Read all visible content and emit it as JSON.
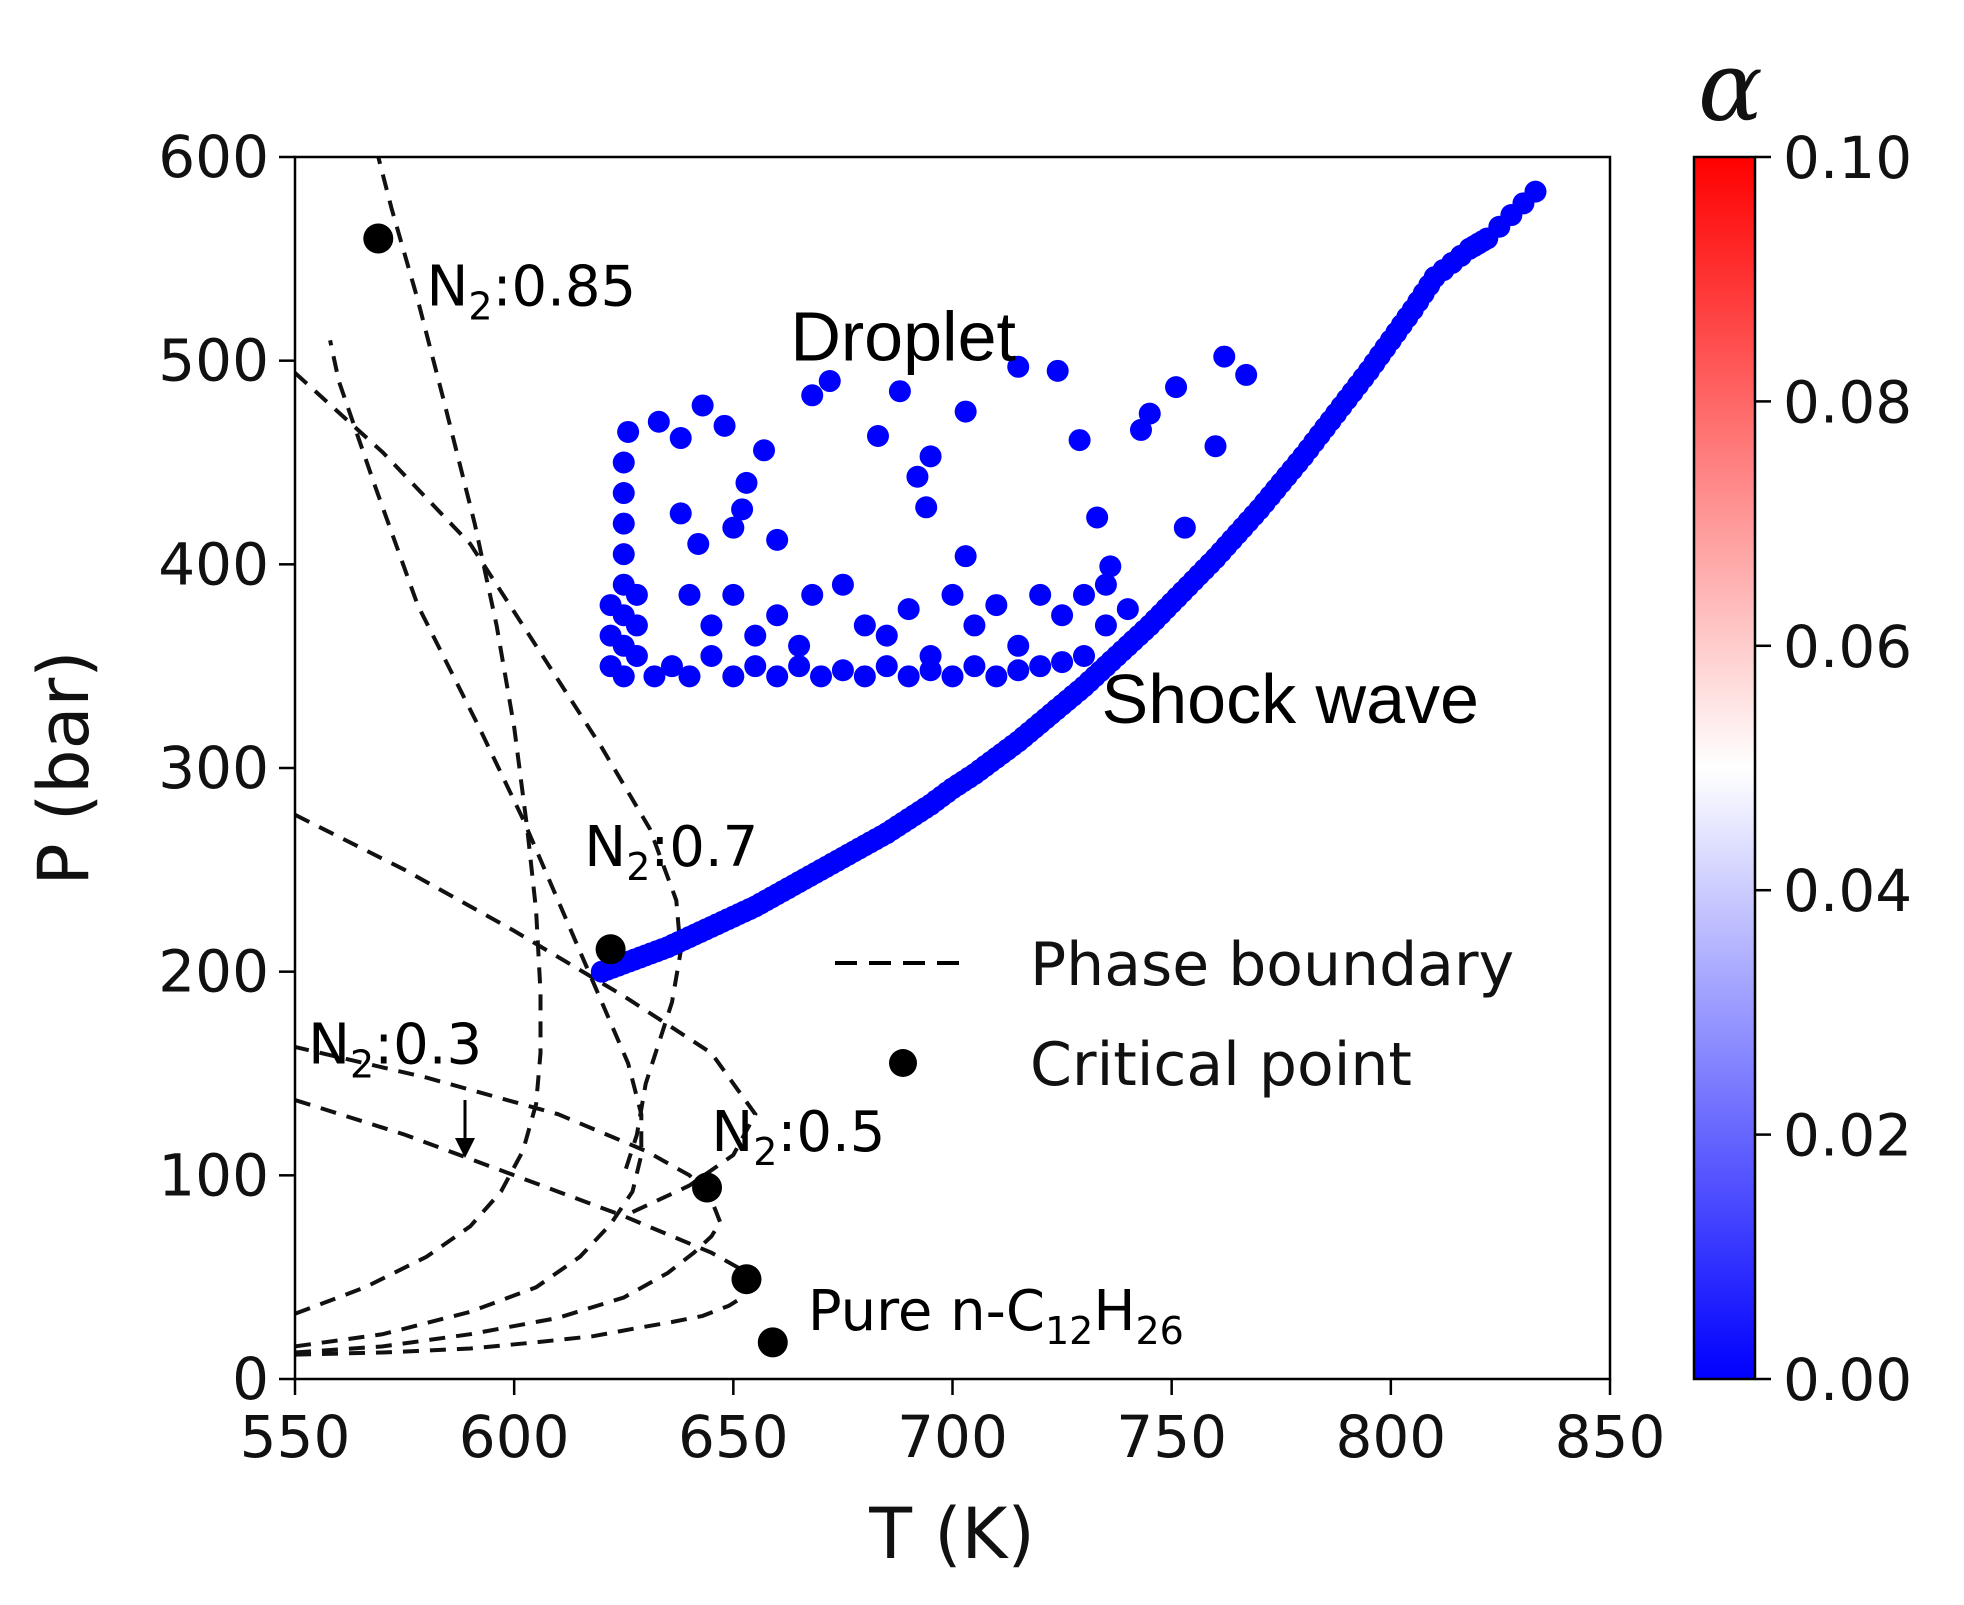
{
  "chart_data": {
    "type": "scatter",
    "xlabel": "T (K)",
    "ylabel": "P (bar)",
    "xlim": [
      550,
      850
    ],
    "ylim": [
      0,
      600
    ],
    "x_ticks": [
      "550",
      "600",
      "650",
      "700",
      "750",
      "800",
      "850"
    ],
    "y_ticks": [
      "0",
      "100",
      "200",
      "300",
      "400",
      "500",
      "600"
    ],
    "grid": false,
    "legend": {
      "placement": "center-right",
      "entries": [
        {
          "label": "Phase boundary",
          "marker": "dashed-line"
        },
        {
          "label": "Critical point",
          "marker": "black-dot"
        }
      ]
    },
    "colorbar": {
      "label": "α",
      "min": 0.0,
      "max": 0.1,
      "ticks": [
        "0.00",
        "0.02",
        "0.04",
        "0.06",
        "0.08",
        "0.10"
      ],
      "colormap": "bwr"
    },
    "phase_boundaries": [
      {
        "points": [
          [
            550,
            12
          ],
          [
            570,
            13
          ],
          [
            590,
            15
          ],
          [
            605,
            18
          ],
          [
            618,
            21
          ],
          [
            628,
            25
          ],
          [
            636,
            28
          ],
          [
            643,
            31
          ],
          [
            649,
            36
          ],
          [
            652,
            40
          ]
        ]
      },
      {
        "points": [
          [
            550,
            13
          ],
          [
            570,
            16
          ],
          [
            590,
            22
          ],
          [
            610,
            30
          ],
          [
            625,
            40
          ],
          [
            635,
            52
          ],
          [
            641,
            62
          ],
          [
            645,
            70
          ],
          [
            647,
            77
          ],
          [
            645,
            88
          ],
          [
            640,
            100
          ],
          [
            630,
            112
          ],
          [
            610,
            130
          ],
          [
            580,
            148
          ],
          [
            550,
            163
          ]
        ]
      },
      {
        "points": [
          [
            550,
            16
          ],
          [
            570,
            22
          ],
          [
            590,
            33
          ],
          [
            605,
            45
          ],
          [
            615,
            60
          ],
          [
            622,
            76
          ],
          [
            627,
            92
          ],
          [
            629,
            110
          ],
          [
            629,
            130
          ],
          [
            626,
            155
          ],
          [
            620,
            185
          ],
          [
            611,
            230
          ],
          [
            602,
            275
          ],
          [
            592,
            320
          ],
          [
            578,
            380
          ],
          [
            568,
            440
          ],
          [
            560,
            490
          ],
          [
            558,
            510
          ]
        ]
      },
      {
        "points": [
          [
            550,
            32
          ],
          [
            566,
            45
          ],
          [
            580,
            60
          ],
          [
            590,
            75
          ],
          [
            597,
            92
          ],
          [
            602,
            112
          ],
          [
            605,
            135
          ],
          [
            606,
            160
          ],
          [
            606,
            190
          ],
          [
            605,
            230
          ],
          [
            603,
            270
          ],
          [
            600,
            320
          ],
          [
            596,
            370
          ],
          [
            591,
            420
          ],
          [
            584,
            480
          ],
          [
            578,
            530
          ],
          [
            572,
            575
          ],
          [
            569,
            600
          ]
        ]
      },
      {
        "points": [
          [
            550,
            494
          ],
          [
            570,
            455
          ],
          [
            590,
            410
          ],
          [
            605,
            360
          ],
          [
            620,
            310
          ],
          [
            631,
            270
          ],
          [
            637,
            235
          ],
          [
            638,
            210
          ],
          [
            636,
            185
          ],
          [
            630,
            145
          ],
          [
            628,
            120
          ],
          [
            625,
            100
          ]
        ]
      },
      {
        "points": [
          [
            550,
            277
          ],
          [
            575,
            250
          ],
          [
            600,
            220
          ],
          [
            625,
            188
          ],
          [
            645,
            160
          ],
          [
            655,
            130
          ],
          [
            650,
            110
          ],
          [
            640,
            95
          ],
          [
            625,
            80
          ]
        ]
      },
      {
        "points": [
          [
            550,
            137
          ],
          [
            575,
            120
          ],
          [
            600,
            100
          ],
          [
            625,
            80
          ],
          [
            645,
            62
          ],
          [
            655,
            50
          ]
        ]
      }
    ],
    "critical_points": [
      {
        "T": 569,
        "P": 560
      },
      {
        "T": 622,
        "P": 211
      },
      {
        "T": 644,
        "P": 94
      },
      {
        "T": 653,
        "P": 49
      },
      {
        "T": 659,
        "P": 18
      }
    ],
    "alpha_scatter": {
      "value": 0.0,
      "color": "#0000ff",
      "shock_wave_points": [
        [
          620,
          200
        ],
        [
          625,
          204
        ],
        [
          630,
          208
        ],
        [
          635,
          212
        ],
        [
          640,
          217
        ],
        [
          645,
          222
        ],
        [
          650,
          227
        ],
        [
          655,
          232
        ],
        [
          660,
          238
        ],
        [
          665,
          244
        ],
        [
          670,
          250
        ],
        [
          675,
          256
        ],
        [
          680,
          262
        ],
        [
          685,
          268
        ],
        [
          690,
          275
        ],
        [
          695,
          282
        ],
        [
          700,
          290
        ],
        [
          705,
          297
        ],
        [
          710,
          305
        ],
        [
          715,
          313
        ],
        [
          720,
          322
        ],
        [
          725,
          331
        ],
        [
          730,
          340
        ],
        [
          735,
          350
        ],
        [
          740,
          360
        ],
        [
          745,
          370
        ],
        [
          750,
          381
        ],
        [
          755,
          392
        ],
        [
          760,
          403
        ],
        [
          765,
          415
        ],
        [
          770,
          427
        ],
        [
          775,
          440
        ],
        [
          780,
          453
        ],
        [
          785,
          467
        ],
        [
          790,
          481
        ],
        [
          795,
          495
        ],
        [
          800,
          510
        ],
        [
          805,
          525
        ],
        [
          810,
          541
        ],
        [
          818,
          555
        ],
        [
          822,
          560
        ],
        [
          833,
          583
        ]
      ],
      "droplet_points": [
        [
          625,
          345
        ],
        [
          625,
          360
        ],
        [
          625,
          375
        ],
        [
          625,
          390
        ],
        [
          625,
          405
        ],
        [
          625,
          420
        ],
        [
          625,
          435
        ],
        [
          625,
          450
        ],
        [
          626,
          465
        ],
        [
          622,
          350
        ],
        [
          622,
          365
        ],
        [
          622,
          380
        ],
        [
          628,
          355
        ],
        [
          628,
          370
        ],
        [
          628,
          385
        ],
        [
          632,
          345
        ],
        [
          636,
          350
        ],
        [
          640,
          345
        ],
        [
          645,
          355
        ],
        [
          650,
          345
        ],
        [
          655,
          350
        ],
        [
          660,
          345
        ],
        [
          665,
          350
        ],
        [
          670,
          345
        ],
        [
          675,
          348
        ],
        [
          680,
          345
        ],
        [
          685,
          350
        ],
        [
          690,
          345
        ],
        [
          695,
          348
        ],
        [
          700,
          345
        ],
        [
          705,
          350
        ],
        [
          710,
          345
        ],
        [
          715,
          348
        ],
        [
          720,
          350
        ],
        [
          725,
          352
        ],
        [
          730,
          355
        ],
        [
          640,
          385
        ],
        [
          645,
          370
        ],
        [
          650,
          385
        ],
        [
          655,
          365
        ],
        [
          660,
          375
        ],
        [
          665,
          360
        ],
        [
          668,
          385
        ],
        [
          675,
          390
        ],
        [
          680,
          370
        ],
        [
          685,
          365
        ],
        [
          690,
          378
        ],
        [
          695,
          355
        ],
        [
          700,
          385
        ],
        [
          705,
          370
        ],
        [
          710,
          380
        ],
        [
          715,
          360
        ],
        [
          720,
          385
        ],
        [
          725,
          375
        ],
        [
          730,
          385
        ],
        [
          735,
          370
        ],
        [
          740,
          378
        ],
        [
          633,
          470
        ],
        [
          638,
          462
        ],
        [
          643,
          478
        ],
        [
          648,
          468
        ],
        [
          652,
          427
        ],
        [
          653,
          440
        ],
        [
          657,
          456
        ],
        [
          642,
          410
        ],
        [
          638,
          425
        ],
        [
          650,
          418
        ],
        [
          660,
          412
        ],
        [
          668,
          483
        ],
        [
          672,
          490
        ],
        [
          683,
          463
        ],
        [
          688,
          485
        ],
        [
          692,
          443
        ],
        [
          694,
          428
        ],
        [
          695,
          453
        ],
        [
          703,
          475
        ],
        [
          703,
          404
        ],
        [
          715,
          497
        ],
        [
          724,
          495
        ],
        [
          729,
          461
        ],
        [
          733,
          423
        ],
        [
          736,
          399
        ],
        [
          743,
          466
        ],
        [
          745,
          474
        ],
        [
          751,
          487
        ],
        [
          753,
          418
        ],
        [
          760,
          458
        ],
        [
          762,
          502
        ],
        [
          767,
          493
        ],
        [
          735,
          390
        ]
      ]
    },
    "annotations": [
      {
        "base": "N",
        "sub": "2",
        "rest": ":0.85",
        "T": 580,
        "P": 527
      },
      {
        "base": "N",
        "sub": "2",
        "rest": ":0.7",
        "T": 616,
        "P": 252
      },
      {
        "base": "N",
        "sub": "2",
        "rest": ":0.5",
        "T": 645,
        "P": 112
      },
      {
        "base": "N",
        "sub": "2",
        "rest": ":0.3",
        "T": 553,
        "P": 155
      },
      {
        "base": "Pure n-C",
        "sub": "12",
        "mid": "H",
        "sub2": "26",
        "T": 667,
        "P": 24
      }
    ],
    "region_labels": [
      {
        "text": "Droplet",
        "T": 663,
        "P": 500
      },
      {
        "text": "Shock wave",
        "T": 734,
        "P": 322
      }
    ]
  }
}
